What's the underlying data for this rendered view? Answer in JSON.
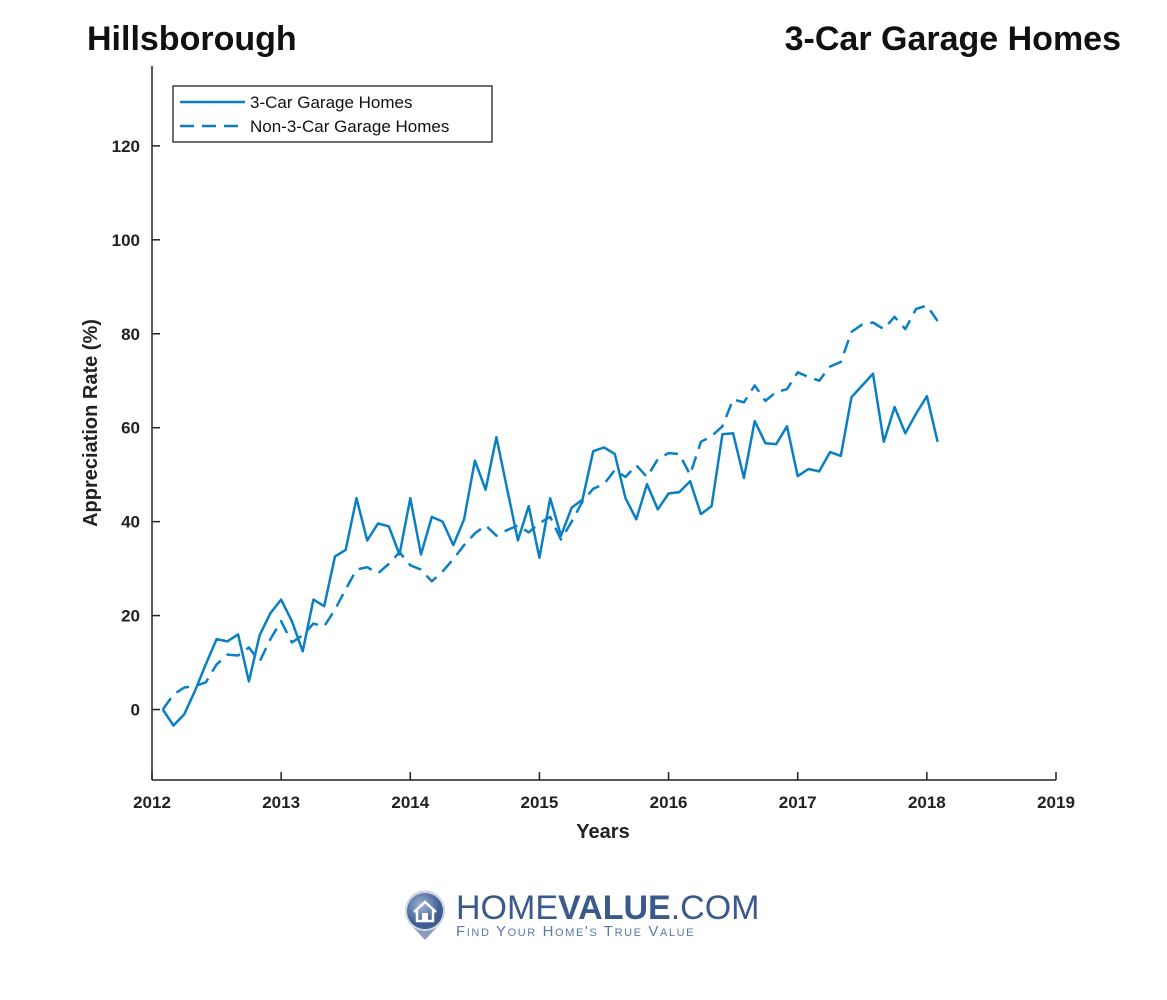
{
  "header": {
    "left_title": "Hillsborough",
    "right_title": "3-Car Garage Homes"
  },
  "logo": {
    "brand_light": "HOME",
    "brand_bold": "VALUE",
    "brand_suffix": ".COM",
    "tagline": "Find Your Home's True Value"
  },
  "chart_data": {
    "type": "line",
    "xlabel": "Years",
    "ylabel": "Appreciation Rate (%)",
    "xlim": [
      2012,
      2019
    ],
    "ylim": [
      -15,
      137
    ],
    "xticks": [
      2012,
      2013,
      2014,
      2015,
      2016,
      2017,
      2018,
      2019
    ],
    "yticks": [
      0,
      20,
      40,
      60,
      80,
      100,
      120
    ],
    "grid": false,
    "legend_placement": "top-left",
    "color": "#0a7fc4",
    "x": [
      "2012-02",
      "2012-03",
      "2012-04",
      "2012-05",
      "2012-06",
      "2012-07",
      "2012-08",
      "2012-09",
      "2012-10",
      "2012-11",
      "2012-12",
      "2013-01",
      "2013-02",
      "2013-03",
      "2013-04",
      "2013-05",
      "2013-06",
      "2013-07",
      "2013-08",
      "2013-09",
      "2013-10",
      "2013-11",
      "2013-12",
      "2014-01",
      "2014-02",
      "2014-03",
      "2014-04",
      "2014-05",
      "2014-06",
      "2014-07",
      "2014-08",
      "2014-09",
      "2014-10",
      "2014-11",
      "2014-12",
      "2015-01",
      "2015-02",
      "2015-03",
      "2015-04",
      "2015-05",
      "2015-06",
      "2015-07",
      "2015-08",
      "2015-09",
      "2015-10",
      "2015-11",
      "2015-12",
      "2016-01",
      "2016-02",
      "2016-03",
      "2016-04",
      "2016-05",
      "2016-06",
      "2016-07",
      "2016-08",
      "2016-09",
      "2016-10",
      "2016-11",
      "2016-12",
      "2017-01",
      "2017-02",
      "2017-03",
      "2017-04",
      "2017-05",
      "2017-06",
      "2017-07",
      "2017-08",
      "2017-09",
      "2017-10",
      "2017-11",
      "2017-12",
      "2018-01",
      "2018-02"
    ],
    "series": [
      {
        "name": "3-Car Garage Homes",
        "style": "solid",
        "values": [
          0,
          -3.4,
          -1,
          4,
          9.6,
          15,
          14.5,
          16,
          6,
          15.8,
          20.5,
          23.4,
          18.8,
          12.4,
          23.4,
          22,
          32.6,
          34,
          45,
          36,
          39.6,
          39,
          33,
          45,
          33,
          41,
          40,
          35,
          40.5,
          53,
          46.8,
          58,
          47,
          36,
          43.3,
          32.3,
          45,
          37,
          43,
          44.7,
          55,
          55.8,
          54.4,
          45,
          40.5,
          48,
          42.6,
          46,
          46.3,
          48.6,
          41.6,
          43.3,
          58.6,
          58.8,
          49.3,
          61.4,
          56.7,
          56.5,
          60.3,
          49.7,
          51.2,
          50.7,
          54.8,
          54,
          66.5,
          69,
          71.5,
          57,
          64.4,
          58.8,
          63,
          66.7,
          57
        ]
      },
      {
        "name": "Non-3-Car Garage Homes",
        "style": "dashed",
        "values": [
          0,
          3.2,
          4.7,
          5,
          5.8,
          9.6,
          11.7,
          11.5,
          13.2,
          10.2,
          15,
          18.8,
          14.3,
          15.8,
          18.3,
          17.7,
          21.3,
          25.6,
          29.8,
          30.3,
          29,
          31,
          33.5,
          30.7,
          29.8,
          27.3,
          29.4,
          32,
          35,
          37.5,
          39.2,
          37,
          38.2,
          39.2,
          37.7,
          39.7,
          41,
          36.2,
          40,
          44.3,
          47,
          48,
          51,
          49.5,
          52,
          49.5,
          53.3,
          54.6,
          54.4,
          50,
          57,
          58.2,
          60.3,
          66,
          65.4,
          69,
          65.7,
          67.6,
          68.2,
          71.8,
          70.8,
          70,
          73,
          74,
          80.4,
          82,
          82.4,
          81,
          83.6,
          81,
          85.3,
          86,
          82.7
        ]
      }
    ]
  }
}
